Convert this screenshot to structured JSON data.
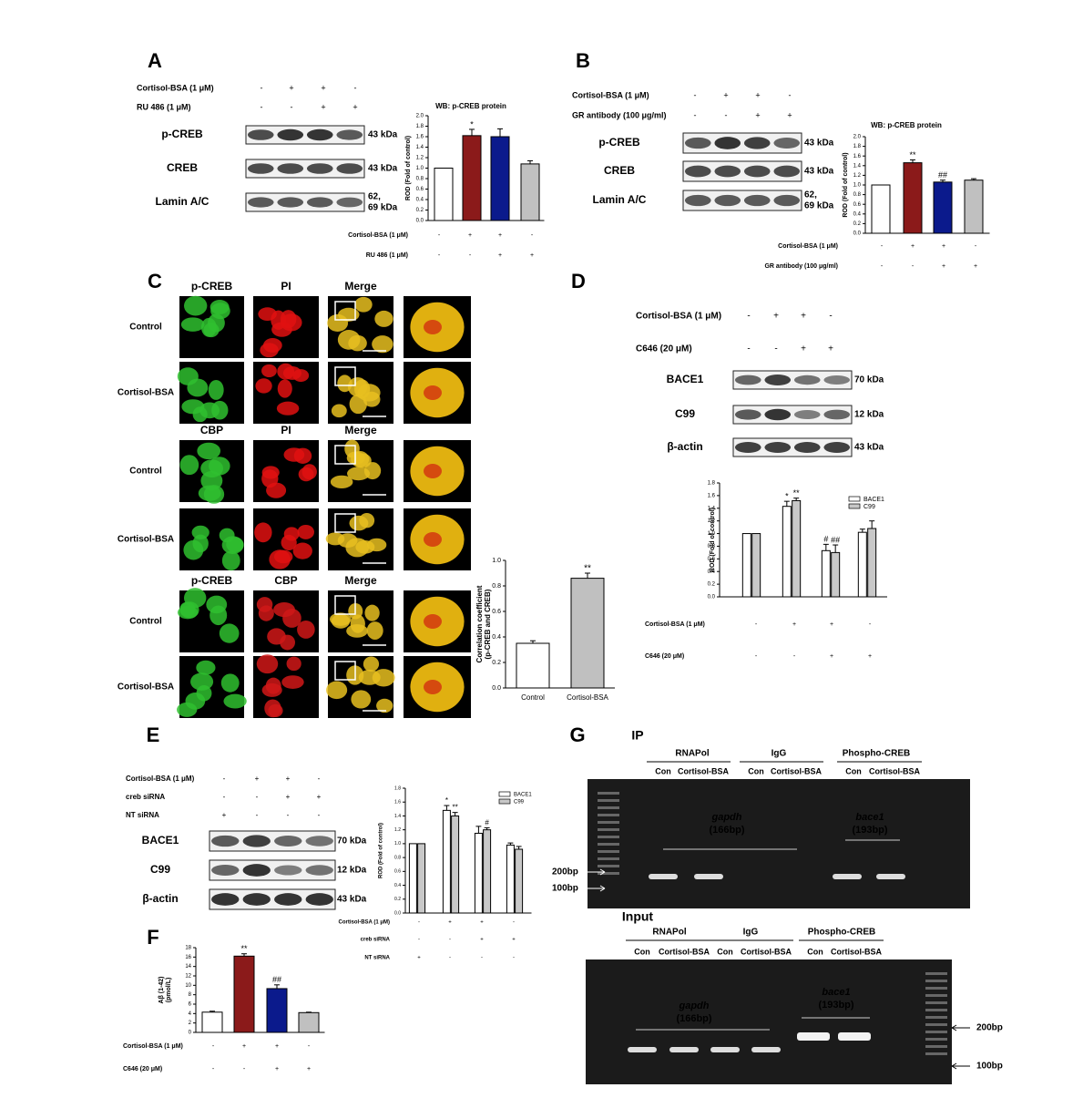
{
  "panels": {
    "A": {
      "label": "A",
      "conditions": [
        {
          "name": "Cortisol-BSA (1 μM)",
          "signs": [
            "-",
            "+",
            "+",
            "-"
          ]
        },
        {
          "name": "RU 486 (1 μM)",
          "signs": [
            "-",
            "-",
            "+",
            "+"
          ]
        }
      ],
      "blots": [
        {
          "name": "p-CREB",
          "size": [
            "43 kDa"
          ]
        },
        {
          "name": "CREB",
          "size": [
            "43 kDa"
          ]
        },
        {
          "name": "Lamin A/C",
          "size": [
            "62,",
            "69 kDa"
          ]
        }
      ]
    },
    "B": {
      "label": "B",
      "conditions": [
        {
          "name": "Cortisol-BSA (1 μM)",
          "signs": [
            "-",
            "+",
            "+",
            "-"
          ]
        },
        {
          "name": "GR antibody (100 μg/ml)",
          "signs": [
            "-",
            "-",
            "+",
            "+"
          ]
        }
      ],
      "blots": [
        {
          "name": "p-CREB",
          "size": [
            "43 kDa"
          ]
        },
        {
          "name": "CREB",
          "size": [
            "43 kDa"
          ]
        },
        {
          "name": "Lamin A/C",
          "size": [
            "62,",
            "69 kDa"
          ]
        }
      ]
    },
    "C": {
      "label": "C",
      "blocks": [
        {
          "columns": [
            "p-CREB",
            "PI",
            "Merge"
          ],
          "rows": [
            "Control",
            "Cortisol-BSA"
          ]
        },
        {
          "columns": [
            "CBP",
            "PI",
            "Merge"
          ],
          "rows": [
            "Control",
            "Cortisol-BSA"
          ]
        },
        {
          "columns": [
            "p-CREB",
            "CBP",
            "Merge"
          ],
          "rows": [
            "Control",
            "Cortisol-BSA"
          ]
        }
      ]
    },
    "D": {
      "label": "D",
      "conditions": [
        {
          "name": "Cortisol-BSA (1 μM)",
          "signs": [
            "-",
            "+",
            "+",
            "-"
          ]
        },
        {
          "name": "C646 (20 μM)",
          "signs": [
            "-",
            "-",
            "+",
            "+"
          ]
        }
      ],
      "blots": [
        {
          "name": "BACE1",
          "size": [
            "70 kDa"
          ]
        },
        {
          "name": "C99",
          "size": [
            "12 kDa"
          ]
        },
        {
          "name": "β-actin",
          "size": [
            "43 kDa"
          ]
        }
      ]
    },
    "E": {
      "label": "E",
      "conditions": [
        {
          "name": "Cortisol-BSA (1 μM)",
          "signs": [
            "-",
            "+",
            "+",
            "-"
          ]
        },
        {
          "name": "creb siRNA",
          "signs": [
            "-",
            "-",
            "+",
            "+"
          ]
        },
        {
          "name": "NT siRNA",
          "signs": [
            "+",
            "-",
            "-",
            "-"
          ]
        }
      ],
      "blots": [
        {
          "name": "BACE1",
          "size": [
            "70 kDa"
          ]
        },
        {
          "name": "C99",
          "size": [
            "12 kDa"
          ]
        },
        {
          "name": "β-actin",
          "size": [
            "43 kDa"
          ]
        }
      ]
    },
    "F": {
      "label": "F"
    },
    "G": {
      "label": "G",
      "gels": [
        {
          "title": "IP",
          "lanes": [
            {
              "name": "RNAPol",
              "sub": [
                "Con",
                "Cortisol-BSA"
              ]
            },
            {
              "name": "IgG",
              "sub": [
                "Con",
                "Cortisol-BSA"
              ]
            },
            {
              "name": "Phospho-CREB",
              "sub": [
                "Con",
                "Cortisol-BSA"
              ]
            }
          ],
          "bands": [
            {
              "gene": "gapdh",
              "size": "(166bp)"
            },
            {
              "gene": "bace1",
              "size": "(193bp)"
            }
          ],
          "markers": [
            "200bp",
            "100bp"
          ]
        },
        {
          "title": "Input",
          "lanes": [
            {
              "name": "RNAPol",
              "sub": [
                "Con",
                "Cortisol-BSA"
              ]
            },
            {
              "name": "IgG",
              "sub": [
                "Con",
                "Cortisol-BSA"
              ]
            },
            {
              "name": "Phospho-CREB",
              "sub": [
                "Con",
                "Cortisol-BSA"
              ]
            }
          ],
          "bands": [
            {
              "gene": "gapdh",
              "size": "(166bp)"
            },
            {
              "gene": "bace1",
              "size": "(193bp)"
            }
          ],
          "markers": [
            "200bp",
            "100bp"
          ]
        }
      ]
    }
  },
  "chart_data": [
    {
      "type": "bar",
      "title": "WB: p-CREB protein",
      "ylabel": [
        "ROD (Fold of control)"
      ],
      "ylim": [
        0,
        2.0
      ],
      "yticks": [
        {
          "value": 0,
          "label": "0.0"
        },
        0.2,
        0.4,
        0.6,
        0.8,
        {
          "value": 1,
          "label": "1.0"
        },
        1.2,
        1.4,
        1.6,
        1.8,
        {
          "value": 2,
          "label": "2.0"
        }
      ],
      "series": [
        {
          "colors": [
            "#ffffff",
            "#8b1a1a",
            "#0b1a8c",
            "#c0c0c0"
          ],
          "values": [
            1.0,
            1.62,
            1.6,
            1.08
          ],
          "errors": [
            null,
            0.12,
            0.15,
            0.06
          ],
          "annotations": [
            null,
            "*",
            null,
            null
          ]
        }
      ],
      "conditions": [
        {
          "name": "Cortisol-BSA (1 μM)",
          "signs": [
            "-",
            "+",
            "+",
            "-"
          ]
        },
        {
          "name": "RU 486 (1 μM)",
          "signs": [
            "-",
            "-",
            "+",
            "+"
          ]
        }
      ]
    },
    {
      "type": "bar",
      "title": "WB: p-CREB protein",
      "ylabel": [
        "ROD (Fold of control)"
      ],
      "ylim": [
        0,
        2.0
      ],
      "yticks": [
        {
          "value": 0,
          "label": "0.0"
        },
        0.2,
        0.4,
        0.6,
        0.8,
        {
          "value": 1,
          "label": "1.0"
        },
        1.2,
        1.4,
        1.6,
        1.8,
        {
          "value": 2,
          "label": "2.0"
        }
      ],
      "series": [
        {
          "colors": [
            "#ffffff",
            "#8b1a1a",
            "#0b1a8c",
            "#c0c0c0"
          ],
          "values": [
            1.0,
            1.46,
            1.06,
            1.1
          ],
          "errors": [
            null,
            0.06,
            0.04,
            0.03
          ],
          "annotations": [
            null,
            "**",
            "##",
            null
          ]
        }
      ],
      "conditions": [
        {
          "name": "Cortisol-BSA (1 μM)",
          "signs": [
            "-",
            "+",
            "+",
            "-"
          ]
        },
        {
          "name": "GR antibody (100 μg/ml)",
          "signs": [
            "-",
            "-",
            "+",
            "+"
          ]
        }
      ]
    },
    {
      "type": "bar",
      "ylabel": [
        "Correlation coefficient",
        "(p-CREB and CREB)"
      ],
      "ylim": [
        0,
        1.0
      ],
      "yticks": [
        {
          "value": 0,
          "label": "0.0"
        },
        0.2,
        0.4,
        0.6,
        0.8,
        {
          "value": 1,
          "label": "1.0"
        }
      ],
      "categories": [
        "Control",
        "Cortisol-BSA"
      ],
      "series": [
        {
          "colors": [
            "#ffffff",
            "#c0c0c0"
          ],
          "values": [
            0.35,
            0.86
          ],
          "errors": [
            0.02,
            0.04
          ],
          "annotations": [
            null,
            "**"
          ]
        }
      ]
    },
    {
      "type": "bar",
      "ylabel": [
        "ROD (Fold of control)"
      ],
      "ylim": [
        0,
        1.8
      ],
      "yticks": [
        {
          "value": 0,
          "label": "0.0"
        },
        0.2,
        0.4,
        0.6,
        0.8,
        {
          "value": 1,
          "label": "1.0"
        },
        1.2,
        1.4,
        1.6,
        1.8
      ],
      "series": [
        {
          "name": "BACE1",
          "color": "#ffffff",
          "values": [
            1.0,
            1.43,
            0.73,
            1.02
          ],
          "errors": [
            null,
            0.08,
            0.1,
            0.05
          ],
          "annotations": [
            null,
            "*",
            "#",
            null
          ]
        },
        {
          "name": "C99",
          "color": "#c8c8c8",
          "values": [
            1.0,
            1.52,
            0.7,
            1.08
          ],
          "errors": [
            null,
            0.04,
            0.12,
            0.12
          ],
          "annotations": [
            null,
            "**",
            "##",
            null
          ]
        }
      ],
      "conditions": [
        {
          "name": "Cortisol-BSA (1 μM)",
          "signs": [
            "-",
            "+",
            "+",
            "-"
          ]
        },
        {
          "name": "C646 (20 μM)",
          "signs": [
            "-",
            "-",
            "+",
            "+"
          ]
        }
      ]
    },
    {
      "type": "bar",
      "ylabel": [
        "ROD (Fold of control)"
      ],
      "ylim": [
        0,
        1.8
      ],
      "yticks": [
        {
          "value": 0,
          "label": "0.0"
        },
        0.2,
        0.4,
        0.6,
        0.8,
        {
          "value": 1,
          "label": "1.0"
        },
        1.2,
        1.4,
        1.6,
        1.8
      ],
      "series": [
        {
          "name": "BACE1",
          "color": "#ffffff",
          "values": [
            1.0,
            1.48,
            1.15,
            0.98
          ],
          "errors": [
            null,
            0.07,
            0.1,
            0.03
          ],
          "annotations": [
            null,
            "*",
            null,
            null
          ]
        },
        {
          "name": "C99",
          "color": "#c8c8c8",
          "values": [
            1.0,
            1.4,
            1.2,
            0.92
          ],
          "errors": [
            null,
            0.05,
            0.03,
            0.04
          ],
          "annotations": [
            null,
            "**",
            "#",
            null
          ]
        }
      ],
      "conditions": [
        {
          "name": "Cortisol-BSA (1 μM)",
          "signs": [
            "-",
            "+",
            "+",
            "-"
          ]
        },
        {
          "name": "creb siRNA",
          "signs": [
            "-",
            "-",
            "+",
            "+"
          ]
        },
        {
          "name": "NT siRNA",
          "signs": [
            "+",
            "-",
            "-",
            "-"
          ]
        }
      ]
    },
    {
      "type": "bar",
      "ylabel": [
        "Aβ (1-42)",
        "(pmol/L)"
      ],
      "ylim": [
        0,
        18
      ],
      "yticks": [
        0,
        2,
        4,
        6,
        8,
        10,
        12,
        14,
        16,
        18
      ],
      "series": [
        {
          "colors": [
            "#ffffff",
            "#8b1a1a",
            "#0b1a8c",
            "#c0c0c0"
          ],
          "values": [
            4.3,
            16.2,
            9.3,
            4.2
          ],
          "errors": [
            0.2,
            0.5,
            0.8,
            0.1
          ],
          "annotations": [
            null,
            "**",
            "##",
            null
          ]
        }
      ],
      "conditions": [
        {
          "name": "Cortisol-BSA (1 μM)",
          "signs": [
            "-",
            "+",
            "+",
            "-"
          ]
        },
        {
          "name": "C646 (20 μM)",
          "signs": [
            "-",
            "-",
            "+",
            "+"
          ]
        }
      ]
    }
  ]
}
